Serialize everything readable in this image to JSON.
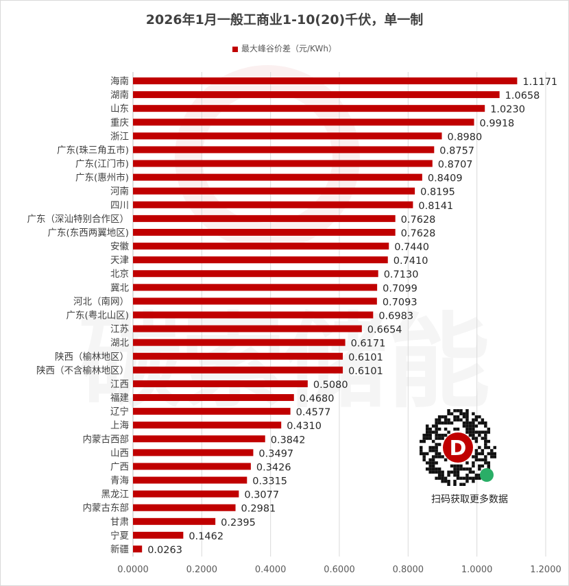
{
  "chart_data": {
    "type": "bar",
    "orientation": "horizontal",
    "title": "2026年1月一般工商业1-10(20)千伏，单一制",
    "legend": [
      "最大峰谷价差（元/KWh）"
    ],
    "legend_position": "top",
    "xlim": [
      0,
      1.2
    ],
    "xticks": [
      "0.0000",
      "0.2000",
      "0.4000",
      "0.6000",
      "0.8000",
      "1.0000",
      "1.2000"
    ],
    "grid": true,
    "color": "#c00000",
    "categories": [
      "海南",
      "湖南",
      "山东",
      "重庆",
      "浙江",
      "广东(珠三角五市)",
      "广东(江门市)",
      "广东(惠州市)",
      "河南",
      "四川",
      "广东（深汕特别合作区）",
      "广东(东西两翼地区)",
      "安徽",
      "天津",
      "北京",
      "冀北",
      "河北（南网）",
      "广东(粤北山区)",
      "江苏",
      "湖北",
      "陕西（榆林地区）",
      "陕西（不含榆林地区）",
      "江西",
      "福建",
      "辽宁",
      "上海",
      "内蒙古西部",
      "山西",
      "广西",
      "青海",
      "黑龙江",
      "内蒙古东部",
      "甘肃",
      "宁夏",
      "新疆"
    ],
    "values": [
      1.1171,
      1.0658,
      1.023,
      0.9918,
      0.898,
      0.8757,
      0.8707,
      0.8409,
      0.8195,
      0.8141,
      0.7628,
      0.7628,
      0.744,
      0.741,
      0.713,
      0.7099,
      0.7093,
      0.6983,
      0.6654,
      0.6171,
      0.6101,
      0.6101,
      0.508,
      0.468,
      0.4577,
      0.431,
      0.3842,
      0.3497,
      0.3426,
      0.3315,
      0.3077,
      0.2981,
      0.2395,
      0.1462,
      0.0263
    ]
  },
  "watermark": "碳索储能",
  "qr": {
    "caption": "扫码获取更多数据"
  }
}
